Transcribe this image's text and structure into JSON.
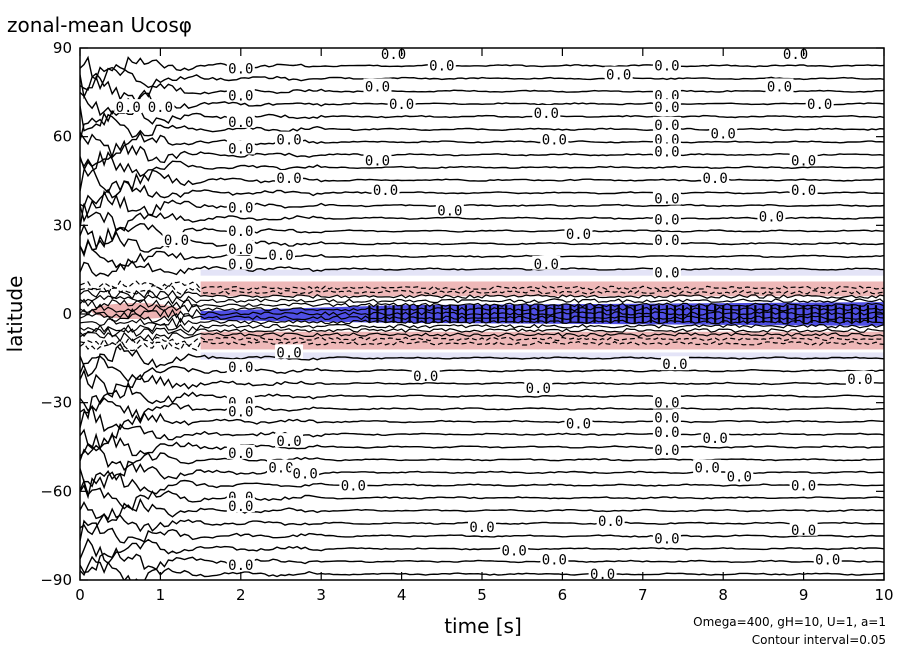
{
  "chart_data": {
    "type": "contour",
    "title": "zonal-mean Ucosφ",
    "xlabel": "time [s]",
    "ylabel": "latitude",
    "xlim": [
      0,
      10
    ],
    "ylim": [
      -90,
      90
    ],
    "xticks": [
      "0",
      "1",
      "2",
      "3",
      "4",
      "5",
      "6",
      "7",
      "8",
      "9",
      "10"
    ],
    "yticks": [
      "90",
      "60",
      "30",
      "0",
      "−30",
      "−60",
      "−90"
    ],
    "contour_interval": 0.05,
    "contour_label_value": "0.0",
    "annotation_line1": "Omega=400, gH=10, U=1, a=1",
    "annotation_line2": "Contour interval=0.05",
    "shading": {
      "positive_color": "#e8a0a0",
      "negative_color": "#3030e0",
      "jet_center_latitude": 0,
      "jet_half_width_latitude": 8,
      "jet_onset_time": 1.5
    },
    "zero_contour_labels": [
      [
        3.9,
        88
      ],
      [
        4.5,
        84
      ],
      [
        6.7,
        81
      ],
      [
        7.3,
        84
      ],
      [
        8.9,
        88
      ],
      [
        2.0,
        83
      ],
      [
        3.7,
        77
      ],
      [
        4.0,
        71
      ],
      [
        2.0,
        74
      ],
      [
        8.7,
        77
      ],
      [
        9.2,
        71
      ],
      [
        0.6,
        70
      ],
      [
        1.0,
        70
      ],
      [
        5.8,
        68
      ],
      [
        7.3,
        74
      ],
      [
        7.3,
        70
      ],
      [
        2.0,
        65
      ],
      [
        2.6,
        59
      ],
      [
        5.9,
        59
      ],
      [
        7.3,
        64
      ],
      [
        7.3,
        59
      ],
      [
        8.0,
        61
      ],
      [
        2.0,
        56
      ],
      [
        3.7,
        52
      ],
      [
        7.3,
        55
      ],
      [
        9.0,
        52
      ],
      [
        2.6,
        46
      ],
      [
        3.8,
        42
      ],
      [
        7.9,
        46
      ],
      [
        9.0,
        42
      ],
      [
        2.0,
        36
      ],
      [
        4.6,
        35
      ],
      [
        7.3,
        39
      ],
      [
        8.6,
        33
      ],
      [
        2.0,
        28
      ],
      [
        1.2,
        25
      ],
      [
        6.2,
        27
      ],
      [
        7.3,
        32
      ],
      [
        7.3,
        25
      ],
      [
        2.0,
        22
      ],
      [
        2.5,
        20
      ],
      [
        5.8,
        17
      ],
      [
        7.3,
        14
      ],
      [
        2.0,
        17
      ],
      [
        2.6,
        -13
      ],
      [
        7.4,
        -17
      ],
      [
        9.7,
        -22
      ],
      [
        2.0,
        -18
      ],
      [
        4.3,
        -21
      ],
      [
        5.7,
        -25
      ],
      [
        7.3,
        -30
      ],
      [
        2.0,
        -30
      ],
      [
        2.0,
        -33
      ],
      [
        6.2,
        -37
      ],
      [
        7.3,
        -35
      ],
      [
        7.3,
        -40
      ],
      [
        2.6,
        -43
      ],
      [
        2.0,
        -47
      ],
      [
        7.3,
        -46
      ],
      [
        7.9,
        -42
      ],
      [
        2.5,
        -52
      ],
      [
        2.8,
        -54
      ],
      [
        3.4,
        -58
      ],
      [
        7.8,
        -52
      ],
      [
        8.2,
        -55
      ],
      [
        9.0,
        -58
      ],
      [
        2.0,
        -62
      ],
      [
        2.0,
        -65
      ],
      [
        6.6,
        -70
      ],
      [
        5.0,
        -72
      ],
      [
        5.4,
        -80
      ],
      [
        5.9,
        -83
      ],
      [
        7.3,
        -76
      ],
      [
        9.0,
        -73
      ],
      [
        9.3,
        -83
      ],
      [
        2.0,
        -85
      ],
      [
        6.5,
        -88
      ]
    ]
  }
}
